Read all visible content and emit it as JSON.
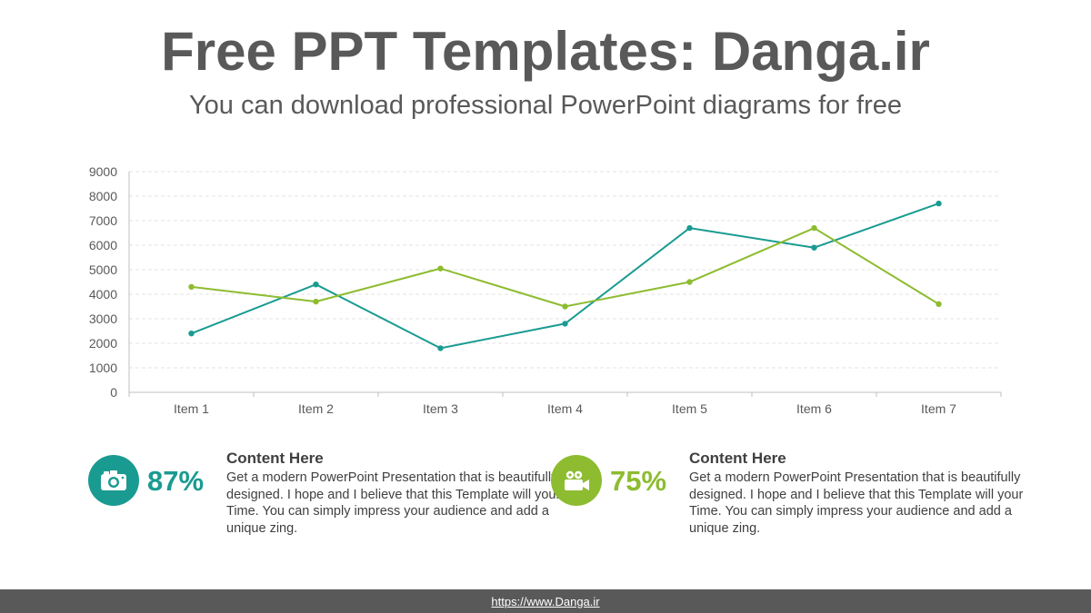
{
  "header": {
    "title": "Free PPT Templates: Danga.ir",
    "subtitle": "You can download professional PowerPoint diagrams for free"
  },
  "colors": {
    "series1": "#1a9b91",
    "series2": "#8dbc30",
    "grid": "#e3e3e3",
    "axis": "#bfbfbf",
    "footer_bg": "#595959"
  },
  "chart_data": {
    "type": "line",
    "categories": [
      "Item 1",
      "Item 2",
      "Item 3",
      "Item 4",
      "Item 5",
      "Item 6",
      "Item 7"
    ],
    "series": [
      {
        "values": [
          2400,
          4400,
          1800,
          2800,
          6700,
          5900,
          7700
        ]
      },
      {
        "values": [
          4300,
          3700,
          5050,
          3500,
          4500,
          6700,
          3600
        ]
      }
    ],
    "ylim": [
      0,
      9000
    ],
    "yticks": [
      0,
      1000,
      2000,
      3000,
      4000,
      5000,
      6000,
      7000,
      8000,
      9000
    ],
    "grid": true,
    "legend": "none"
  },
  "stats": [
    {
      "icon": "camera-icon",
      "value": "87%",
      "heading": "Content  Here",
      "body": "Get a modern PowerPoint  Presentation that is beautifully designed. I hope and I believe that this Template will your Time. You can simply impress your audience and add a unique zing."
    },
    {
      "icon": "video-camera-icon",
      "value": "75%",
      "heading": "Content  Here",
      "body": "Get a modern PowerPoint  Presentation that is beautifully designed. I hope and I believe that this Template will your Time. You can simply impress your audience and add a unique zing."
    }
  ],
  "footer": {
    "link": "https://www.Danga.ir"
  }
}
